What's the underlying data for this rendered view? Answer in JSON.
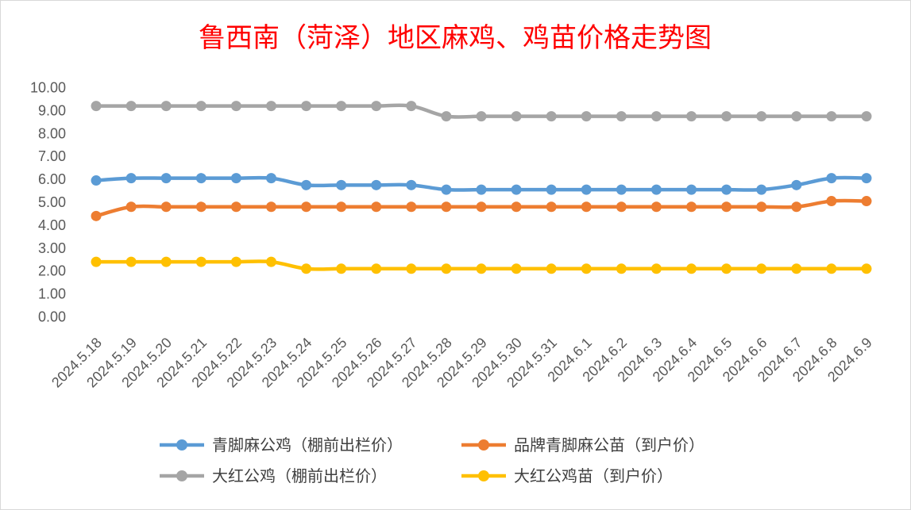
{
  "chart_data": {
    "type": "line",
    "title": "鲁西南（菏泽）地区麻鸡、鸡苗价格走势图",
    "categories": [
      "2024.5.18",
      "2024.5.19",
      "2024.5.20",
      "2024.5.21",
      "2024.5.22",
      "2024.5.23",
      "2024.5.24",
      "2024.5.25",
      "2024.5.26",
      "2024.5.27",
      "2024.5.28",
      "2024.5.29",
      "2024.5.30",
      "2024.5.31",
      "2024.6.1",
      "2024.6.2",
      "2024.6.3",
      "2024.6.4",
      "2024.6.5",
      "2024.6.6",
      "2024.6.7",
      "2024.6.8",
      "2024.6.9"
    ],
    "yticks": [
      "0.00",
      "1.00",
      "2.00",
      "3.00",
      "4.00",
      "5.00",
      "6.00",
      "7.00",
      "8.00",
      "9.00",
      "10.00"
    ],
    "ylim": [
      0,
      10
    ],
    "grid": true,
    "legend_position": "bottom",
    "series": [
      {
        "name": "青脚麻公鸡（棚前出栏价）",
        "color": "#5b9bd5",
        "values": [
          5.95,
          6.05,
          6.05,
          6.05,
          6.05,
          6.05,
          5.75,
          5.75,
          5.75,
          5.75,
          5.55,
          5.55,
          5.55,
          5.55,
          5.55,
          5.55,
          5.55,
          5.55,
          5.55,
          5.55,
          5.75,
          6.05,
          6.05
        ]
      },
      {
        "name": "品牌青脚麻公苗（到户价）",
        "color": "#ed7d31",
        "values": [
          4.4,
          4.8,
          4.8,
          4.8,
          4.8,
          4.8,
          4.8,
          4.8,
          4.8,
          4.8,
          4.8,
          4.8,
          4.8,
          4.8,
          4.8,
          4.8,
          4.8,
          4.8,
          4.8,
          4.8,
          4.8,
          5.05,
          5.05
        ]
      },
      {
        "name": "大红公鸡（棚前出栏价）",
        "color": "#a5a5a5",
        "values": [
          9.2,
          9.2,
          9.2,
          9.2,
          9.2,
          9.2,
          9.2,
          9.2,
          9.2,
          9.2,
          8.75,
          8.75,
          8.75,
          8.75,
          8.75,
          8.75,
          8.75,
          8.75,
          8.75,
          8.75,
          8.75,
          8.75,
          8.75
        ]
      },
      {
        "name": "大红公鸡苗（到户价）",
        "color": "#ffc000",
        "values": [
          2.4,
          2.4,
          2.4,
          2.4,
          2.4,
          2.4,
          2.1,
          2.1,
          2.1,
          2.1,
          2.1,
          2.1,
          2.1,
          2.1,
          2.1,
          2.1,
          2.1,
          2.1,
          2.1,
          2.1,
          2.1,
          2.1,
          2.1
        ]
      }
    ]
  }
}
